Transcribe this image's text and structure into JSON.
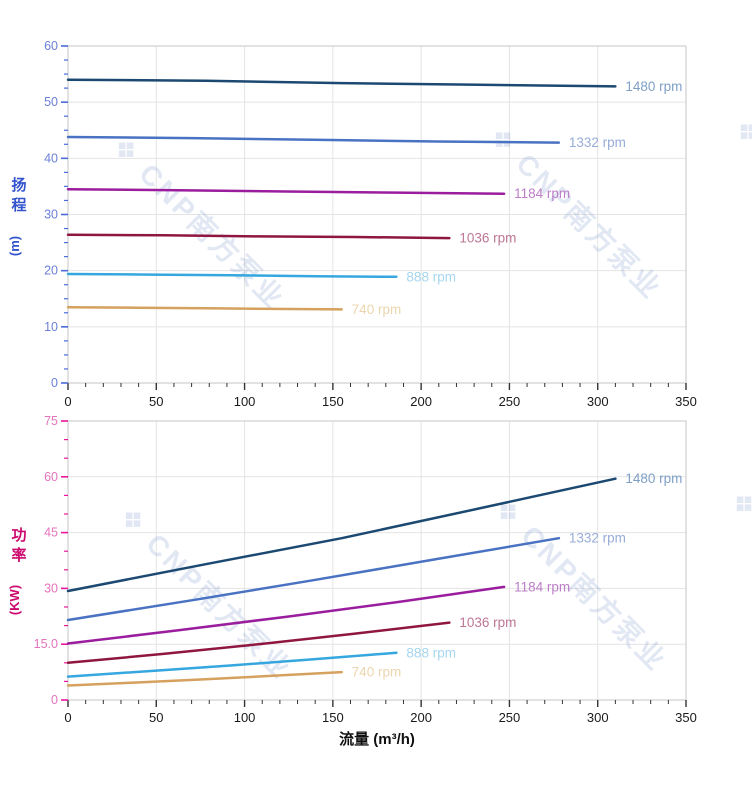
{
  "watermark": {
    "logo_glyph": "❖",
    "text": "CNP南方泵业",
    "color": "rgba(105,135,195,0.20)"
  },
  "style": {
    "frame_color": "#cfcfcf",
    "grid_color": "#e4e4e4",
    "xtick_color": "#333333",
    "xtick_label_color": "#1a1a1a",
    "xlabel_color": "#111111"
  },
  "chart_data": [
    {
      "type": "line",
      "title": "",
      "xlabel": "",
      "ylabel": "扬程 (m)",
      "ylabel_chars": [
        "扬",
        "程"
      ],
      "ylabel_unit": "(m)",
      "axis_title_color": "#3354cd",
      "ytick_color": "#4a6bd8",
      "ytick_label_color": "#6b7fd7",
      "xlim": [
        0,
        350
      ],
      "ylim": [
        0,
        60
      ],
      "xticks": [
        0,
        50,
        100,
        150,
        200,
        250,
        300,
        350
      ],
      "xtick_labels": [
        "0",
        "50",
        "100",
        "150",
        "200",
        "250",
        "300",
        "350"
      ],
      "x_minor_step": 10,
      "yticks": [
        0,
        10,
        20,
        30,
        40,
        50,
        60
      ],
      "ytick_labels": [
        "0",
        "10",
        "20",
        "30",
        "40",
        "50",
        "60"
      ],
      "y_minor_step": 2.5,
      "grid": true,
      "legend_position": "line-end-labels",
      "series": [
        {
          "name": "1480 rpm",
          "color": "#1b4972",
          "label_color": "#7fa0c6",
          "points": [
            [
              0,
              54.0
            ],
            [
              78,
              53.8
            ],
            [
              155,
              53.4
            ],
            [
              233,
              53.1
            ],
            [
              310,
              52.8
            ]
          ]
        },
        {
          "name": "1332 rpm",
          "color": "#4a72c2",
          "label_color": "#97acd9",
          "points": [
            [
              0,
              43.8
            ],
            [
              70,
              43.6
            ],
            [
              139,
              43.3
            ],
            [
              209,
              43.0
            ],
            [
              278,
              42.8
            ]
          ]
        },
        {
          "name": "1184 rpm",
          "color": "#9a1d9e",
          "label_color": "#bb7ec7",
          "points": [
            [
              0,
              34.5
            ],
            [
              62,
              34.3
            ],
            [
              124,
              34.1
            ],
            [
              186,
              33.9
            ],
            [
              247,
              33.7
            ]
          ]
        },
        {
          "name": "1036 rpm",
          "color": "#8f1640",
          "label_color": "#bd7795",
          "points": [
            [
              0,
              26.4
            ],
            [
              54,
              26.3
            ],
            [
              108,
              26.1
            ],
            [
              162,
              26.0
            ],
            [
              216,
              25.8
            ]
          ]
        },
        {
          "name": "888 rpm",
          "color": "#36a7de",
          "label_color": "#a6d6f0",
          "points": [
            [
              0,
              19.4
            ],
            [
              47,
              19.3
            ],
            [
              93,
              19.2
            ],
            [
              140,
              19.0
            ],
            [
              186,
              18.9
            ]
          ]
        },
        {
          "name": "740 rpm",
          "color": "#d6a15e",
          "label_color": "#ecd5ae",
          "points": [
            [
              0,
              13.5
            ],
            [
              39,
              13.4
            ],
            [
              78,
              13.3
            ],
            [
              116,
              13.2
            ],
            [
              155,
              13.1
            ]
          ]
        }
      ]
    },
    {
      "type": "line",
      "title": "",
      "xlabel": "流量 (m³/h)",
      "ylabel": "功率 (KW)",
      "ylabel_chars": [
        "功",
        "率"
      ],
      "ylabel_unit": "(KW)",
      "axis_title_color": "#cc0a6e",
      "ytick_color": "#e8169b",
      "ytick_label_color": "#e473bd",
      "xlim": [
        0,
        350
      ],
      "ylim": [
        0,
        75
      ],
      "xticks": [
        0,
        50,
        100,
        150,
        200,
        250,
        300,
        350
      ],
      "xtick_labels": [
        "0",
        "50",
        "100",
        "150",
        "200",
        "250",
        "300",
        "350"
      ],
      "x_minor_step": 10,
      "yticks": [
        0,
        15,
        30,
        45,
        60,
        75
      ],
      "ytick_labels": [
        "0",
        "15.0",
        "30",
        "45",
        "60",
        "75"
      ],
      "y_minor_step": 5,
      "grid": true,
      "legend_position": "line-end-labels",
      "series": [
        {
          "name": "1480 rpm",
          "color": "#1b4972",
          "label_color": "#7fa0c6",
          "points": [
            [
              0,
              29.3
            ],
            [
              78,
              36.5
            ],
            [
              155,
              43.5
            ],
            [
              233,
              51.5
            ],
            [
              310,
              59.5
            ]
          ]
        },
        {
          "name": "1332 rpm",
          "color": "#4a72c2",
          "label_color": "#97acd9",
          "points": [
            [
              0,
              21.5
            ],
            [
              70,
              26.8
            ],
            [
              139,
              32.2
            ],
            [
              209,
              37.9
            ],
            [
              278,
              43.5
            ]
          ]
        },
        {
          "name": "1184 rpm",
          "color": "#9a1d9e",
          "label_color": "#bb7ec7",
          "points": [
            [
              0,
              15.2
            ],
            [
              62,
              18.7
            ],
            [
              124,
              22.4
            ],
            [
              186,
              26.3
            ],
            [
              247,
              30.4
            ]
          ]
        },
        {
          "name": "1036 rpm",
          "color": "#8f1640",
          "label_color": "#bd7795",
          "points": [
            [
              0,
              10.0
            ],
            [
              54,
              12.4
            ],
            [
              108,
              15.0
            ],
            [
              162,
              17.8
            ],
            [
              216,
              20.8
            ]
          ]
        },
        {
          "name": "888 rpm",
          "color": "#36a7de",
          "label_color": "#a6d6f0",
          "points": [
            [
              0,
              6.3
            ],
            [
              47,
              7.8
            ],
            [
              93,
              9.3
            ],
            [
              140,
              11.0
            ],
            [
              186,
              12.7
            ]
          ]
        },
        {
          "name": "740 rpm",
          "color": "#d6a15e",
          "label_color": "#ecd5ae",
          "points": [
            [
              0,
              3.9
            ],
            [
              39,
              4.7
            ],
            [
              78,
              5.6
            ],
            [
              116,
              6.5
            ],
            [
              155,
              7.5
            ]
          ]
        }
      ]
    }
  ]
}
